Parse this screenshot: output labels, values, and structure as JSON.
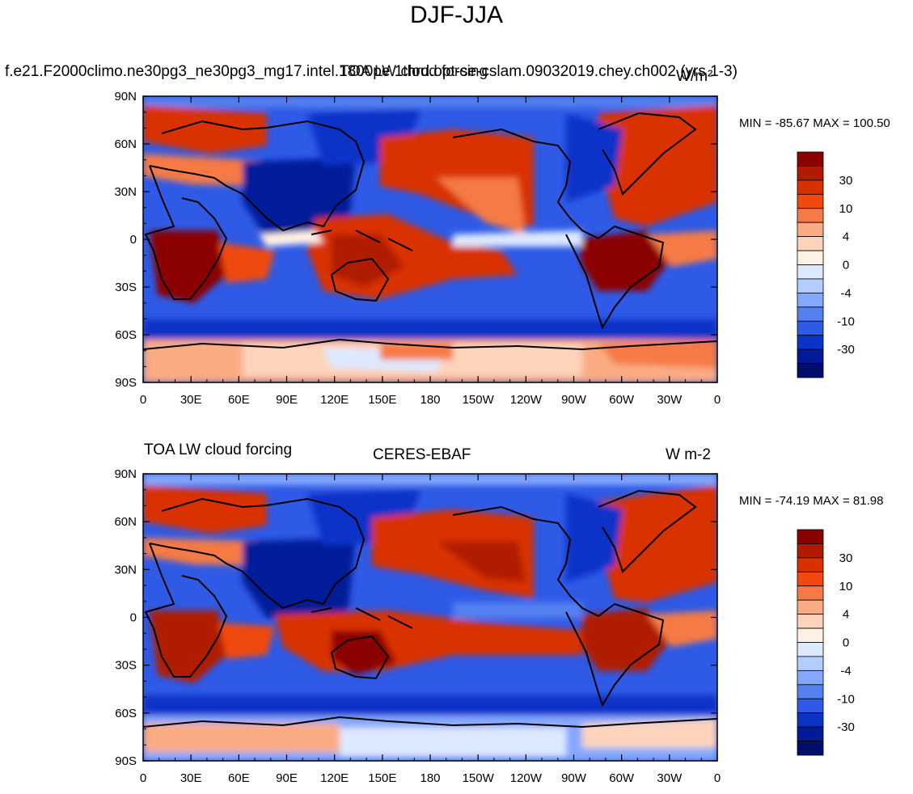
{
  "page_title": "DJF-JJA",
  "units_note": "W/m²",
  "panels": [
    {
      "left_title": "f.e21.F2000climo.ne30pg3_ne30pg3_mg17.intel.1800pe.1thrd.opt-se-cslam.09032019.chey.ch002 (yrs 1-3)",
      "center_title": "TOA LW cloud forcing",
      "right_title": "W/m²",
      "minmax": "MIN = -85.67 MAX = 100.50"
    },
    {
      "left_title": "TOA LW cloud forcing",
      "center_title": "CERES-EBAF",
      "right_title": "W m-2",
      "minmax": "MIN = -74.19 MAX =  81.98"
    }
  ],
  "axes": {
    "lat_labels": [
      "90N",
      "60N",
      "30N",
      "0",
      "30S",
      "60S",
      "90S"
    ],
    "lon_labels": [
      "0",
      "30E",
      "60E",
      "90E",
      "120E",
      "150E",
      "180",
      "150W",
      "120W",
      "90W",
      "60W",
      "30W",
      "0"
    ]
  },
  "colorbar": {
    "labels": [
      "30",
      "10",
      "4",
      "0",
      "-4",
      "-10",
      "-30"
    ],
    "colors": [
      "#8b0000",
      "#b01a00",
      "#d93000",
      "#f04a10",
      "#f57a45",
      "#fbab82",
      "#fdd4bb",
      "#fff2e4",
      "#dde9ff",
      "#b5ccff",
      "#84a8ff",
      "#5580f0",
      "#2e5ae6",
      "#0a33c8",
      "#001a99",
      "#000e6b"
    ]
  }
}
